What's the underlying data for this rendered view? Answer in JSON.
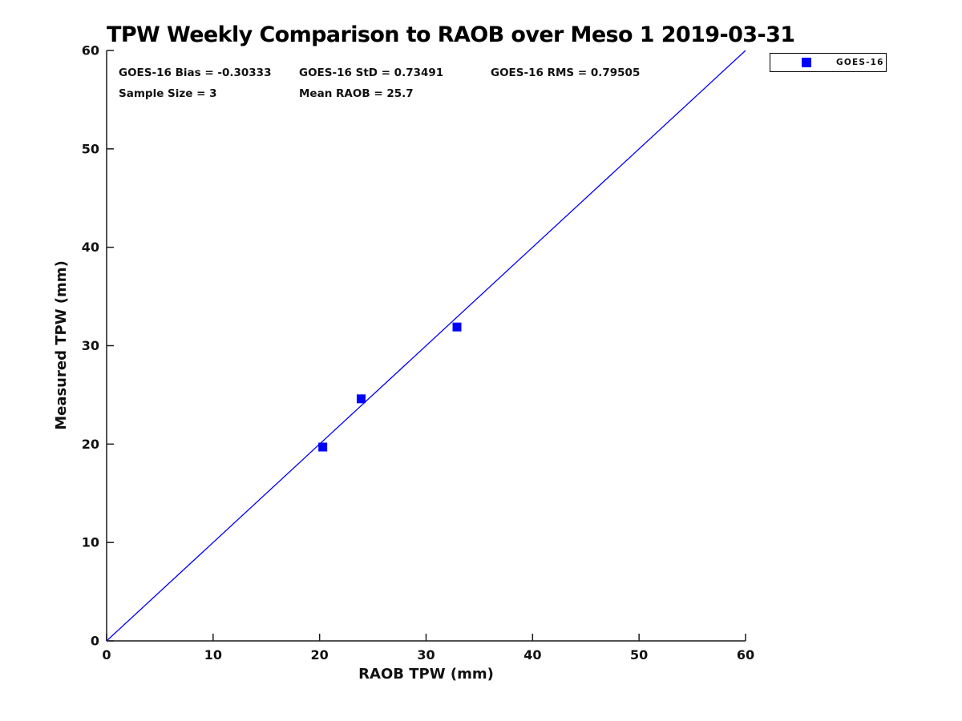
{
  "chart_data": {
    "type": "scatter",
    "title": "TPW Weekly Comparison to RAOB over Meso 1 2019-03-31",
    "xlabel": "RAOB TPW (mm)",
    "ylabel": "Measured TPW (mm)",
    "xlim": [
      0,
      60
    ],
    "ylim": [
      0,
      60
    ],
    "xticks": [
      0,
      10,
      20,
      30,
      40,
      50,
      60
    ],
    "yticks": [
      0,
      10,
      20,
      30,
      40,
      50,
      60
    ],
    "grid": false,
    "legend_position": "top-right-outside",
    "series": [
      {
        "name": "GOES-16",
        "marker": "square",
        "color": "#0000ff",
        "points": [
          {
            "x": 20.3,
            "y": 19.7
          },
          {
            "x": 23.9,
            "y": 24.6
          },
          {
            "x": 32.9,
            "y": 31.9
          }
        ]
      }
    ],
    "reference_line": {
      "x1": 0,
      "y1": 0,
      "x2": 60,
      "y2": 60,
      "color": "#0000ff",
      "style": "solid"
    },
    "annotations": [
      "GOES-16 Bias = -0.30333",
      "GOES-16 StD = 0.73491",
      "GOES-16 RMS = 0.79505",
      "Sample Size = 3",
      "Mean RAOB = 25.7"
    ],
    "colors": {
      "accent_blue": "#0000ff",
      "axis": "#1a1a1a",
      "background": "#ffffff"
    }
  }
}
